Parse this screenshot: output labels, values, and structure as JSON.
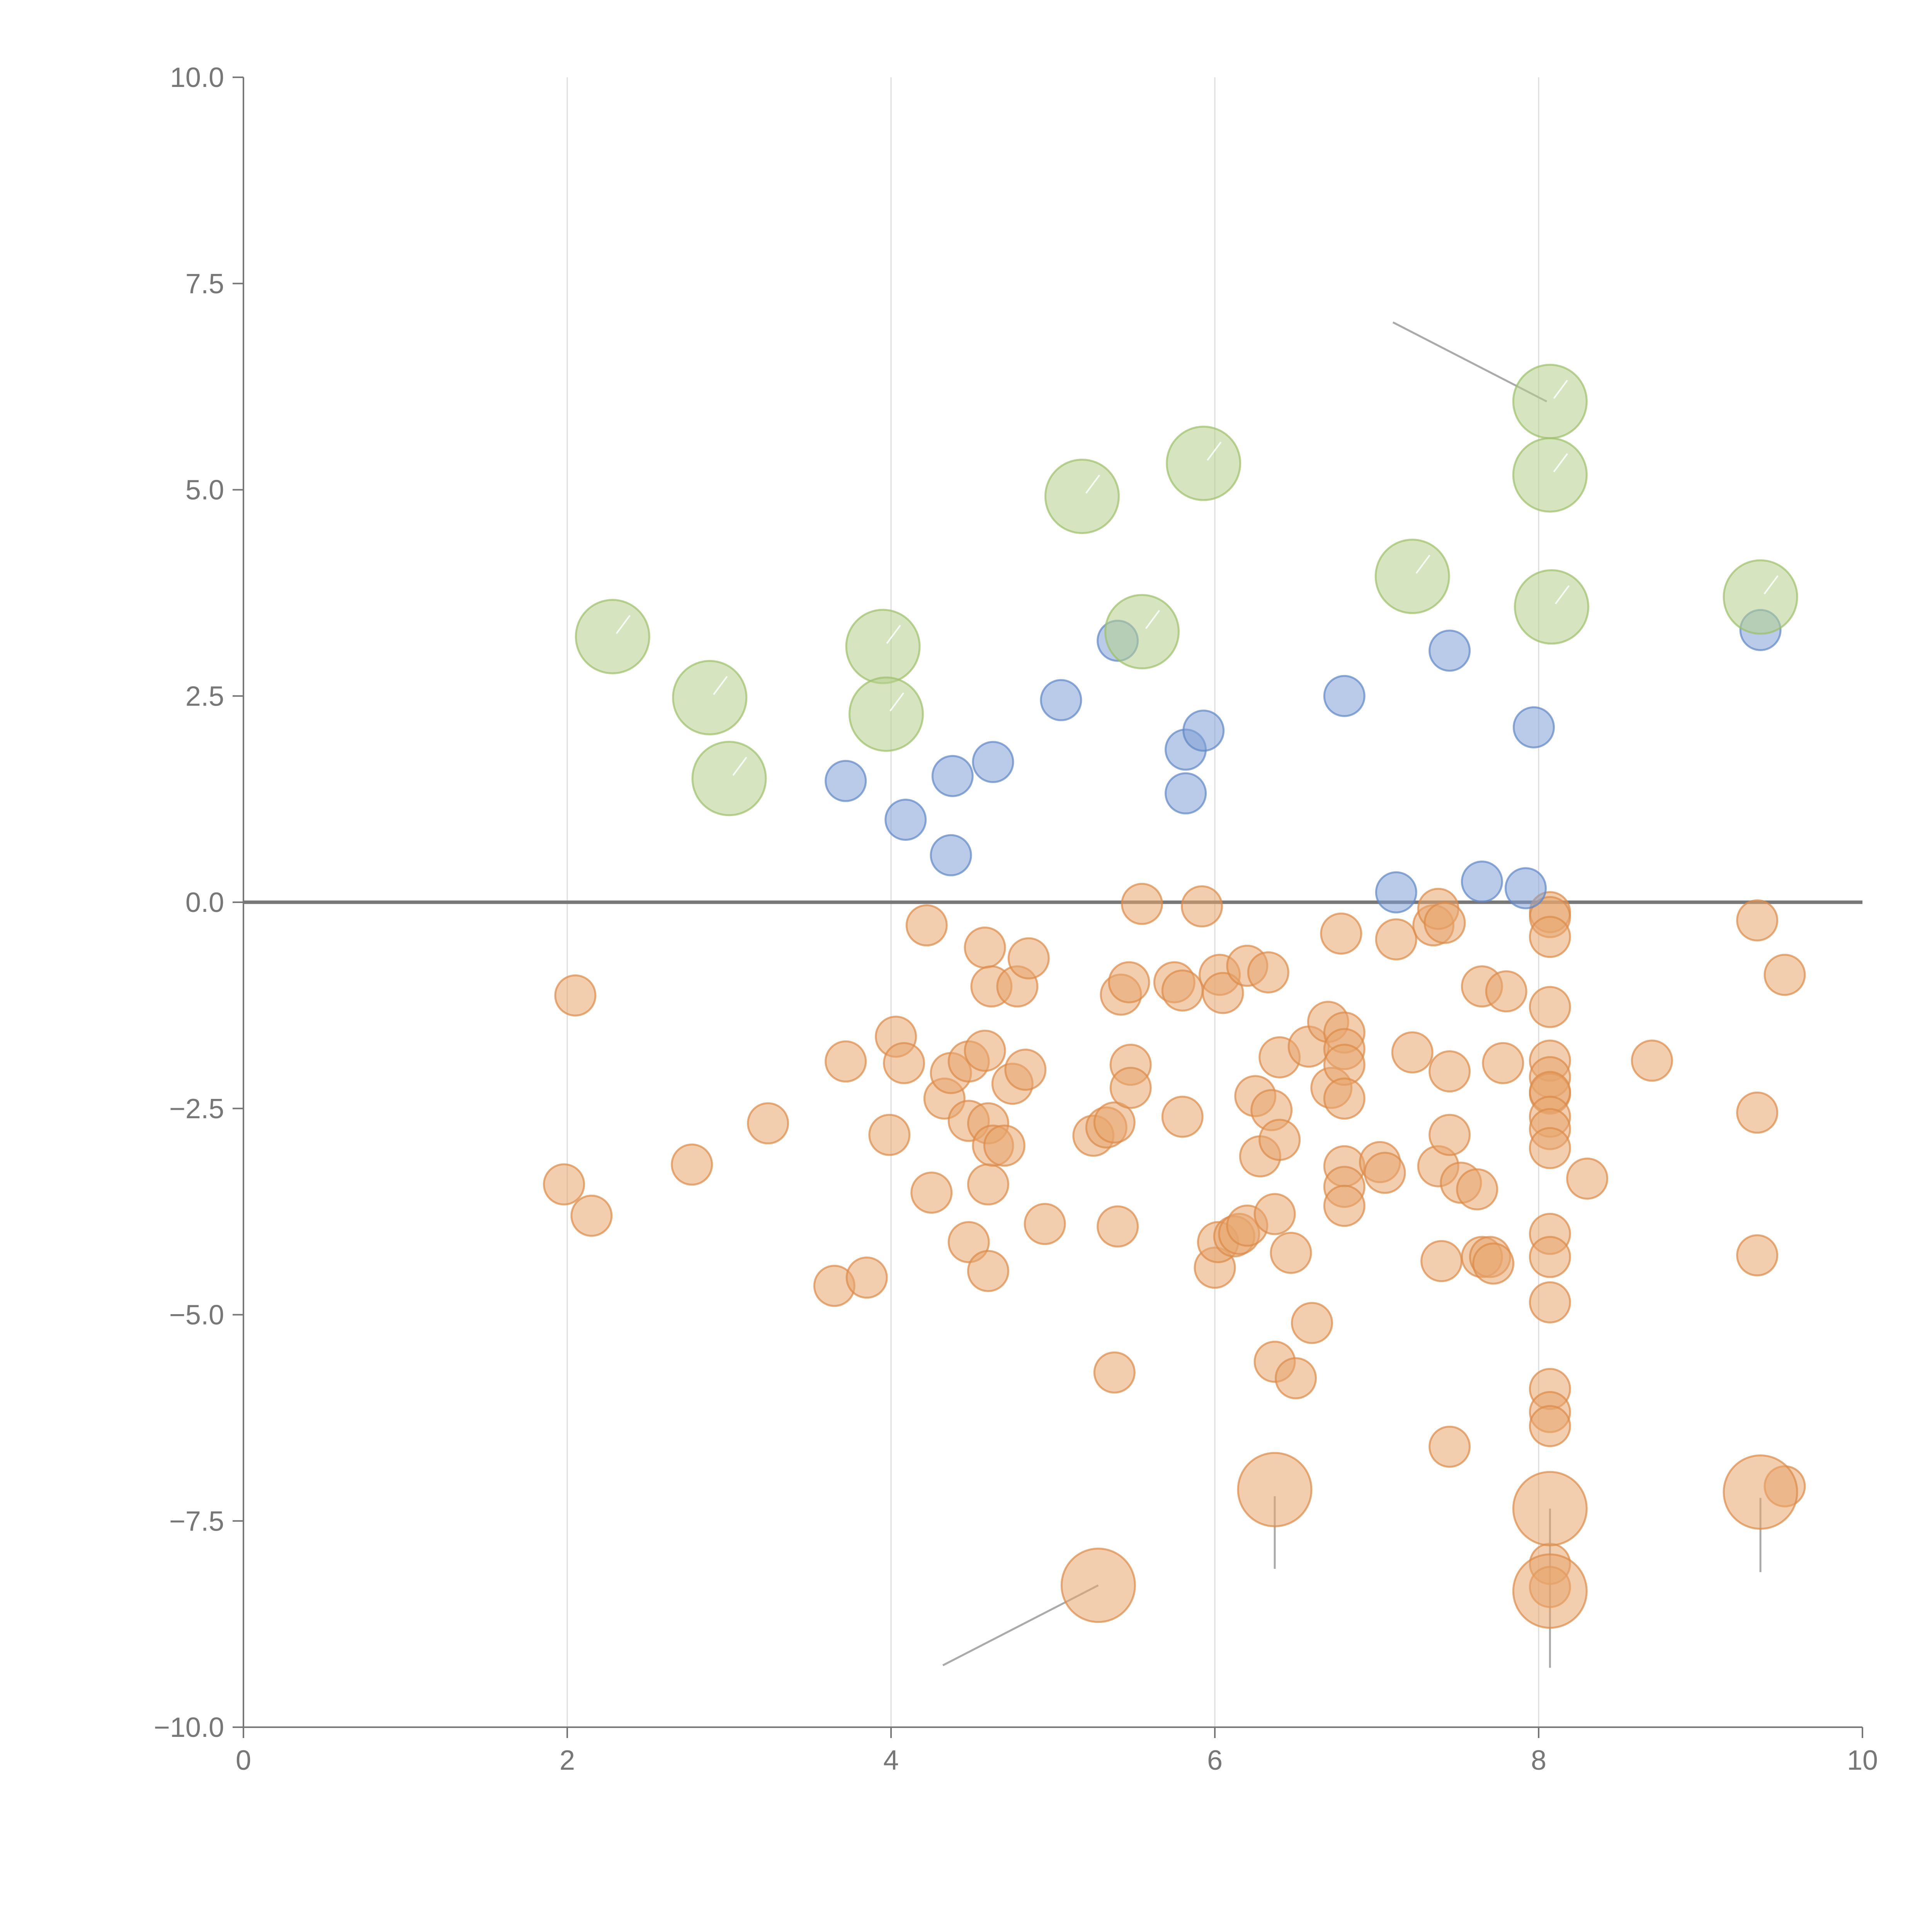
{
  "chart_data": {
    "type": "scatter",
    "title": "",
    "xlabel": "",
    "ylabel": "",
    "xlim": [
      0,
      10
    ],
    "ylim": [
      -10,
      10
    ],
    "x_ticks": [
      "0",
      "2",
      "4",
      "6",
      "8",
      "10"
    ],
    "y_ticks": [
      "10.0",
      "7.5",
      "5.0",
      "2.5",
      "0.0",
      "−2.5",
      "−5.0",
      "−7.5",
      "−10.0"
    ],
    "grid": "vertical",
    "zero_line": true,
    "colors": {
      "green": "#b5d08d",
      "blue": "#7fa1d6",
      "orange": "#e8a56e",
      "grid": "#dddddd",
      "axis": "#777777"
    },
    "series": [
      {
        "name": "green",
        "size": "large",
        "points": [
          [
            2.28,
            3.22
          ],
          [
            2.88,
            2.48
          ],
          [
            3.0,
            1.5
          ],
          [
            3.95,
            3.1
          ],
          [
            3.97,
            2.28
          ],
          [
            5.18,
            4.92
          ],
          [
            5.55,
            3.28
          ],
          [
            5.93,
            5.32
          ],
          [
            7.22,
            3.95
          ],
          [
            8.07,
            6.07
          ],
          [
            8.07,
            5.18
          ],
          [
            8.08,
            3.58
          ],
          [
            9.37,
            3.7
          ]
        ]
      },
      {
        "name": "blue",
        "size": "small",
        "points": [
          [
            3.72,
            1.47
          ],
          [
            4.09,
            1.0
          ],
          [
            4.38,
            1.53
          ],
          [
            4.37,
            0.57
          ],
          [
            4.63,
            1.7
          ],
          [
            5.05,
            2.45
          ],
          [
            5.4,
            3.17
          ],
          [
            5.82,
            1.85
          ],
          [
            5.82,
            1.32
          ],
          [
            5.93,
            2.08
          ],
          [
            6.8,
            2.5
          ],
          [
            7.12,
            0.12
          ],
          [
            7.45,
            3.05
          ],
          [
            7.65,
            0.25
          ],
          [
            7.92,
            0.17
          ],
          [
            7.97,
            2.12
          ],
          [
            9.37,
            3.3
          ]
        ]
      },
      {
        "name": "orange",
        "size": "small",
        "points": [
          [
            1.98,
            -3.42
          ],
          [
            2.05,
            -1.13
          ],
          [
            2.15,
            -3.8
          ],
          [
            2.77,
            -3.18
          ],
          [
            3.24,
            -2.68
          ],
          [
            3.65,
            -4.65
          ],
          [
            3.72,
            -1.93
          ],
          [
            3.85,
            -4.55
          ],
          [
            3.99,
            -2.82
          ],
          [
            4.03,
            -1.63
          ],
          [
            4.08,
            -1.95
          ],
          [
            4.22,
            -0.28
          ],
          [
            4.25,
            -3.52
          ],
          [
            4.33,
            -2.38
          ],
          [
            4.37,
            -2.07
          ],
          [
            4.48,
            -4.12
          ],
          [
            4.48,
            -1.93
          ],
          [
            4.48,
            -2.65
          ],
          [
            4.58,
            -0.55
          ],
          [
            4.58,
            -1.8
          ],
          [
            4.6,
            -2.68
          ],
          [
            4.6,
            -3.42
          ],
          [
            4.6,
            -4.47
          ],
          [
            4.62,
            -1.02
          ],
          [
            4.63,
            -2.95
          ],
          [
            4.7,
            -2.95
          ],
          [
            4.75,
            -2.2
          ],
          [
            4.78,
            -1.02
          ],
          [
            4.83,
            -2.03
          ],
          [
            4.85,
            -0.68
          ],
          [
            4.95,
            -3.9
          ],
          [
            5.25,
            -2.83
          ],
          [
            5.33,
            -2.73
          ],
          [
            5.38,
            -2.67
          ],
          [
            5.38,
            -5.7
          ],
          [
            5.4,
            -3.93
          ],
          [
            5.42,
            -1.12
          ],
          [
            5.47,
            -0.97
          ],
          [
            5.48,
            -1.97
          ],
          [
            5.48,
            -2.25
          ],
          [
            5.55,
            -0.02
          ],
          [
            5.75,
            -0.97
          ],
          [
            5.8,
            -1.07
          ],
          [
            5.8,
            -2.6
          ],
          [
            5.92,
            -0.05
          ],
          [
            6.0,
            -4.43
          ],
          [
            6.02,
            -4.12
          ],
          [
            6.03,
            -0.88
          ],
          [
            6.05,
            -1.1
          ],
          [
            6.12,
            -4.05
          ],
          [
            6.15,
            -4.02
          ],
          [
            6.2,
            -3.92
          ],
          [
            6.2,
            -0.77
          ],
          [
            6.25,
            -2.35
          ],
          [
            6.28,
            -3.08
          ],
          [
            6.33,
            -0.85
          ],
          [
            6.35,
            -2.52
          ],
          [
            6.37,
            -3.78
          ],
          [
            6.37,
            -5.57
          ],
          [
            6.4,
            -1.88
          ],
          [
            6.4,
            -2.88
          ],
          [
            6.47,
            -4.25
          ],
          [
            6.5,
            -5.77
          ],
          [
            6.58,
            -1.75
          ],
          [
            6.6,
            -5.1
          ],
          [
            6.7,
            -1.45
          ],
          [
            6.72,
            -2.25
          ],
          [
            6.78,
            -0.38
          ],
          [
            6.8,
            -1.58
          ],
          [
            6.8,
            -1.78
          ],
          [
            6.8,
            -1.97
          ],
          [
            6.8,
            -2.38
          ],
          [
            6.8,
            -3.2
          ],
          [
            6.8,
            -3.45
          ],
          [
            6.8,
            -3.68
          ],
          [
            7.02,
            -3.15
          ],
          [
            7.05,
            -3.28
          ],
          [
            7.12,
            -0.45
          ],
          [
            7.22,
            -1.82
          ],
          [
            7.35,
            -0.28
          ],
          [
            7.38,
            -0.08
          ],
          [
            7.38,
            -3.2
          ],
          [
            7.4,
            -4.35
          ],
          [
            7.42,
            -0.25
          ],
          [
            7.45,
            -2.05
          ],
          [
            7.45,
            -2.82
          ],
          [
            7.45,
            -6.6
          ],
          [
            7.52,
            -3.4
          ],
          [
            7.62,
            -3.48
          ],
          [
            7.65,
            -1.02
          ],
          [
            7.65,
            -4.3
          ],
          [
            7.7,
            -4.3
          ],
          [
            7.72,
            -4.38
          ],
          [
            7.78,
            -1.95
          ],
          [
            7.8,
            -1.08
          ],
          [
            8.07,
            -0.12
          ],
          [
            8.07,
            -0.18
          ],
          [
            8.07,
            -0.42
          ],
          [
            8.07,
            -1.27
          ],
          [
            8.07,
            -1.92
          ],
          [
            8.07,
            -2.12
          ],
          [
            8.07,
            -2.32
          ],
          [
            8.07,
            -2.3
          ],
          [
            8.07,
            -2.6
          ],
          [
            8.07,
            -2.75
          ],
          [
            8.07,
            -2.98
          ],
          [
            8.07,
            -4.02
          ],
          [
            8.07,
            -4.3
          ],
          [
            8.07,
            -4.85
          ],
          [
            8.07,
            -5.9
          ],
          [
            8.07,
            -6.18
          ],
          [
            8.07,
            -6.35
          ],
          [
            8.07,
            -8.02
          ],
          [
            8.07,
            -8.3
          ],
          [
            8.3,
            -3.35
          ],
          [
            8.7,
            -1.92
          ],
          [
            9.35,
            -0.22
          ],
          [
            9.35,
            -2.55
          ],
          [
            9.35,
            -4.28
          ],
          [
            9.52,
            -0.88
          ],
          [
            9.52,
            -7.08
          ]
        ]
      },
      {
        "name": "orange-large",
        "size": "large",
        "points": [
          [
            5.28,
            -8.28
          ],
          [
            6.37,
            -7.12
          ],
          [
            8.07,
            -7.35
          ],
          [
            8.07,
            -8.35
          ],
          [
            9.37,
            -7.15
          ]
        ]
      }
    ],
    "leader_lines": [
      {
        "from": [
          7.1,
          7.03
        ],
        "to": [
          8.05,
          6.07
        ]
      },
      {
        "from": [
          4.32,
          -9.25
        ],
        "to": [
          5.28,
          -8.28
        ]
      },
      {
        "from": [
          6.37,
          -7.2
        ],
        "to": [
          6.37,
          -8.08
        ]
      },
      {
        "from": [
          8.07,
          -7.35
        ],
        "to": [
          8.07,
          -9.28
        ]
      },
      {
        "from": [
          9.37,
          -7.22
        ],
        "to": [
          9.37,
          -8.12
        ]
      }
    ]
  }
}
